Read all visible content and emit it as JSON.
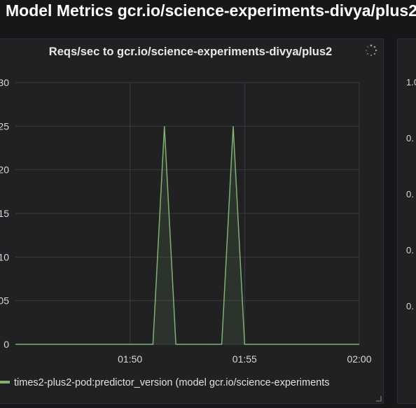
{
  "row": {
    "title": "Model Metrics gcr.io/science-experiments-divya/plus2"
  },
  "panel": {
    "title": "Reqs/sec to gcr.io/science-experiments-divya/plus2",
    "legend": "times2-plus2-pod:predictor_version (model gcr.io/science-experiments",
    "series_color": "#7eb26d"
  },
  "right_panel": {
    "y_ticks": [
      "1.0",
      "0.",
      "0.",
      "0.",
      "0."
    ]
  },
  "chart_data": {
    "type": "area",
    "title": "Reqs/sec to gcr.io/science-experiments-divya/plus2",
    "x_ticks": [
      "01:50",
      "01:55",
      "02:00"
    ],
    "y_tick_labels": [
      "0",
      "05",
      "10",
      "15",
      "20",
      "25",
      "30"
    ],
    "y_tick_values": [
      0,
      0.05,
      0.1,
      0.15,
      0.2,
      0.25,
      0.3
    ],
    "ylim": [
      0,
      0.3
    ],
    "grid": true,
    "series": [
      {
        "name": "times2-plus2-pod:predictor_version (model gcr.io/science-experiments",
        "x": [
          "01:45:00",
          "01:51:00",
          "01:51:30",
          "01:52:00",
          "01:54:00",
          "01:54:30",
          "01:55:00",
          "02:00:00"
        ],
        "y": [
          0,
          0,
          0.25,
          0,
          0,
          0.25,
          0,
          0
        ]
      }
    ]
  }
}
